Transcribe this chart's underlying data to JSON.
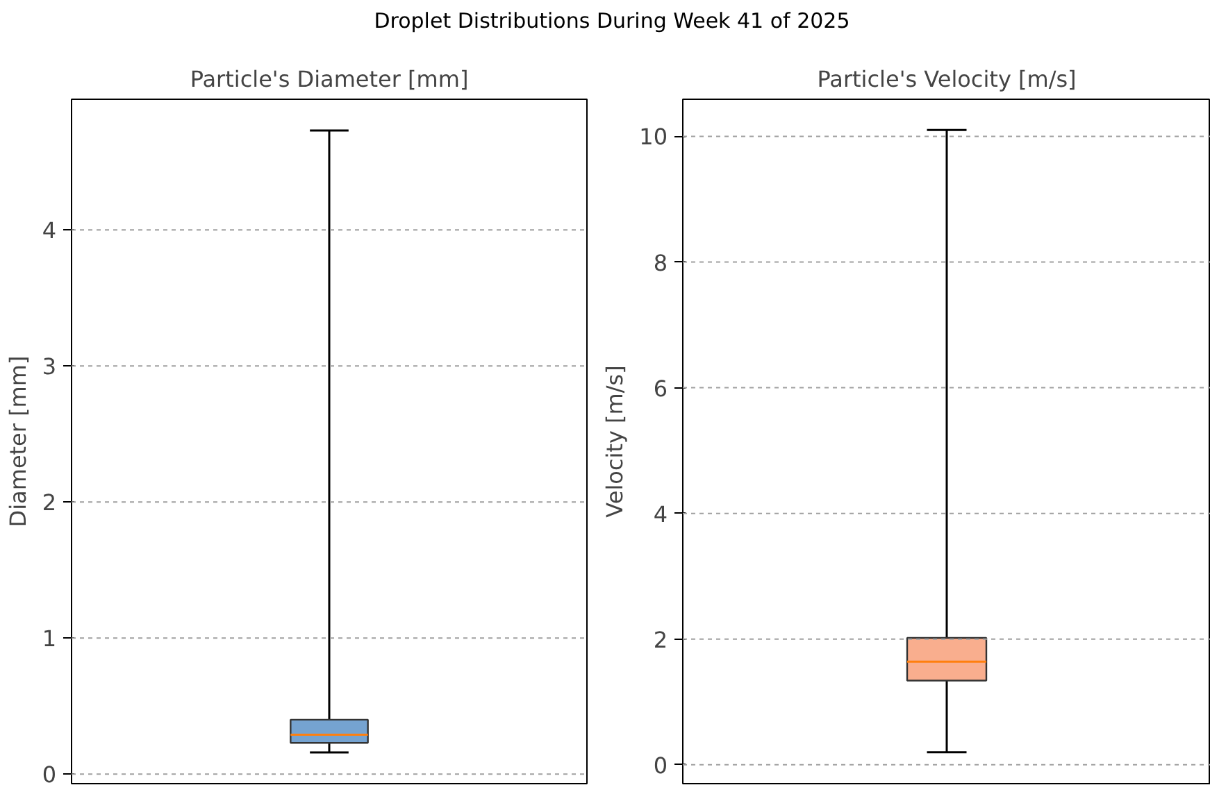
{
  "chart_data": [
    {
      "type": "box",
      "title": "Particle's Diameter [mm]",
      "ylabel": "Diameter [mm]",
      "annotations": [
        "Droplet Distributions During Week 41 of 2025"
      ],
      "categories": [
        null
      ],
      "series": [
        {
          "color": "#75a3d1",
          "boxes": [
            {
              "low": 0.16,
              "q1": 0.23,
              "median": 0.29,
              "q3": 0.4,
              "high": 4.73
            }
          ]
        }
      ],
      "ylim": [
        -0.07,
        4.96
      ],
      "yticks": [
        0,
        1,
        2,
        3,
        4
      ],
      "grid": "y",
      "tick_labels": "y"
    },
    {
      "type": "box",
      "title": "Particle's Velocity [m/s]",
      "ylabel": "Velocity [m/s]",
      "categories": [
        null
      ],
      "series": [
        {
          "color": "#f9ae8e",
          "boxes": [
            {
              "low": 0.2,
              "q1": 1.34,
              "median": 1.64,
              "q3": 2.02,
              "high": 10.1
            }
          ]
        }
      ],
      "ylim": [
        -0.3,
        10.59
      ],
      "yticks": [
        0,
        2,
        4,
        6,
        8,
        10
      ],
      "grid": "y",
      "tick_labels": "y"
    }
  ]
}
